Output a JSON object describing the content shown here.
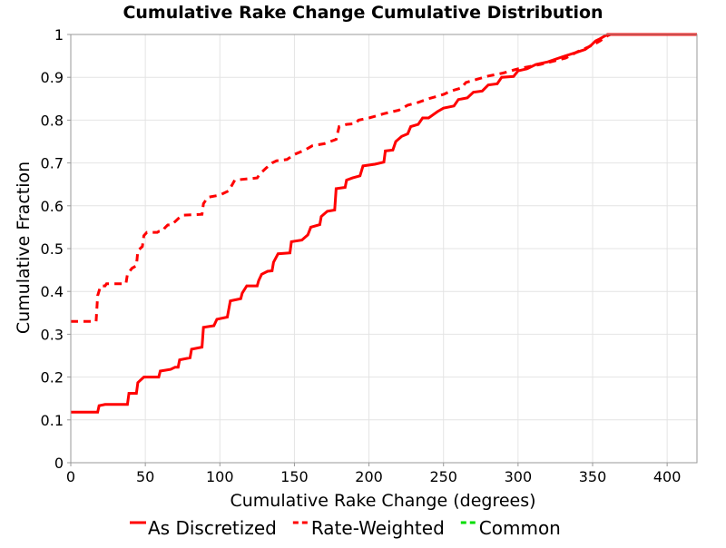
{
  "chart_data": {
    "type": "line",
    "title": "Cumulative Rake Change Cumulative Distribution",
    "xlabel": "Cumulative Rake Change (degrees)",
    "ylabel": "Cumulative Fraction",
    "xlim": [
      0,
      420
    ],
    "ylim": [
      0,
      1
    ],
    "x_ticks": [
      "0",
      "50",
      "100",
      "150",
      "200",
      "250",
      "300",
      "350",
      "400"
    ],
    "y_ticks": [
      "0",
      "0.1",
      "0.2",
      "0.3",
      "0.4",
      "0.5",
      "0.6",
      "0.7",
      "0.8",
      "0.9",
      "1"
    ],
    "grid": true,
    "legend_position": "bottom",
    "series": [
      {
        "name": "As Discretized",
        "style": "solid",
        "color": "#ff0000",
        "points": [
          [
            0,
            0.118
          ],
          [
            18,
            0.118
          ],
          [
            19,
            0.133
          ],
          [
            23,
            0.136
          ],
          [
            38,
            0.136
          ],
          [
            39,
            0.162
          ],
          [
            44,
            0.162
          ],
          [
            45,
            0.187
          ],
          [
            49,
            0.2
          ],
          [
            59,
            0.2
          ],
          [
            60,
            0.214
          ],
          [
            67,
            0.218
          ],
          [
            70,
            0.223
          ],
          [
            72,
            0.223
          ],
          [
            73,
            0.24
          ],
          [
            80,
            0.245
          ],
          [
            81,
            0.265
          ],
          [
            88,
            0.27
          ],
          [
            89,
            0.316
          ],
          [
            96,
            0.32
          ],
          [
            98,
            0.335
          ],
          [
            105,
            0.34
          ],
          [
            107,
            0.378
          ],
          [
            114,
            0.383
          ],
          [
            115,
            0.396
          ],
          [
            118,
            0.413
          ],
          [
            125,
            0.413
          ],
          [
            126,
            0.425
          ],
          [
            128,
            0.44
          ],
          [
            132,
            0.447
          ],
          [
            135,
            0.448
          ],
          [
            136,
            0.468
          ],
          [
            139,
            0.488
          ],
          [
            147,
            0.49
          ],
          [
            148,
            0.516
          ],
          [
            155,
            0.52
          ],
          [
            159,
            0.532
          ],
          [
            161,
            0.55
          ],
          [
            167,
            0.556
          ],
          [
            168,
            0.575
          ],
          [
            172,
            0.587
          ],
          [
            177,
            0.59
          ],
          [
            178,
            0.64
          ],
          [
            184,
            0.643
          ],
          [
            185,
            0.66
          ],
          [
            189,
            0.665
          ],
          [
            194,
            0.67
          ],
          [
            196,
            0.693
          ],
          [
            204,
            0.697
          ],
          [
            210,
            0.702
          ],
          [
            211,
            0.728
          ],
          [
            216,
            0.73
          ],
          [
            218,
            0.75
          ],
          [
            222,
            0.762
          ],
          [
            226,
            0.768
          ],
          [
            228,
            0.785
          ],
          [
            233,
            0.79
          ],
          [
            236,
            0.805
          ],
          [
            240,
            0.805
          ],
          [
            246,
            0.82
          ],
          [
            250,
            0.828
          ],
          [
            257,
            0.833
          ],
          [
            260,
            0.848
          ],
          [
            266,
            0.852
          ],
          [
            270,
            0.865
          ],
          [
            276,
            0.868
          ],
          [
            280,
            0.882
          ],
          [
            286,
            0.885
          ],
          [
            289,
            0.9
          ],
          [
            297,
            0.902
          ],
          [
            300,
            0.915
          ],
          [
            306,
            0.92
          ],
          [
            312,
            0.93
          ],
          [
            320,
            0.936
          ],
          [
            330,
            0.948
          ],
          [
            338,
            0.957
          ],
          [
            345,
            0.965
          ],
          [
            349,
            0.975
          ],
          [
            352,
            0.985
          ],
          [
            355,
            0.99
          ],
          [
            360,
            1.0
          ],
          [
            420,
            1.0
          ]
        ]
      },
      {
        "name": "Rate-Weighted",
        "style": "dashed",
        "color": "#ff0000",
        "points": [
          [
            0,
            0.33
          ],
          [
            17,
            0.33
          ],
          [
            18,
            0.39
          ],
          [
            20,
            0.413
          ],
          [
            23,
            0.413
          ],
          [
            24,
            0.418
          ],
          [
            30,
            0.418
          ],
          [
            37,
            0.418
          ],
          [
            38,
            0.44
          ],
          [
            41,
            0.454
          ],
          [
            44,
            0.46
          ],
          [
            45,
            0.495
          ],
          [
            48,
            0.505
          ],
          [
            49,
            0.53
          ],
          [
            51,
            0.538
          ],
          [
            58,
            0.538
          ],
          [
            59,
            0.54
          ],
          [
            62,
            0.542
          ],
          [
            63,
            0.548
          ],
          [
            65,
            0.555
          ],
          [
            68,
            0.556
          ],
          [
            69,
            0.56
          ],
          [
            72,
            0.57
          ],
          [
            75,
            0.578
          ],
          [
            88,
            0.58
          ],
          [
            89,
            0.605
          ],
          [
            92,
            0.62
          ],
          [
            100,
            0.625
          ],
          [
            106,
            0.635
          ],
          [
            110,
            0.66
          ],
          [
            125,
            0.665
          ],
          [
            127,
            0.675
          ],
          [
            131,
            0.688
          ],
          [
            135,
            0.7
          ],
          [
            138,
            0.705
          ],
          [
            145,
            0.708
          ],
          [
            150,
            0.72
          ],
          [
            157,
            0.73
          ],
          [
            162,
            0.74
          ],
          [
            170,
            0.745
          ],
          [
            178,
            0.755
          ],
          [
            180,
            0.785
          ],
          [
            185,
            0.79
          ],
          [
            191,
            0.792
          ],
          [
            193,
            0.8
          ],
          [
            200,
            0.805
          ],
          [
            205,
            0.81
          ],
          [
            210,
            0.815
          ],
          [
            216,
            0.82
          ],
          [
            220,
            0.823
          ],
          [
            226,
            0.835
          ],
          [
            232,
            0.84
          ],
          [
            240,
            0.85
          ],
          [
            250,
            0.86
          ],
          [
            255,
            0.868
          ],
          [
            262,
            0.875
          ],
          [
            265,
            0.888
          ],
          [
            272,
            0.895
          ],
          [
            280,
            0.903
          ],
          [
            290,
            0.91
          ],
          [
            300,
            0.92
          ],
          [
            315,
            0.93
          ],
          [
            332,
            0.945
          ],
          [
            340,
            0.96
          ],
          [
            350,
            0.975
          ],
          [
            355,
            0.985
          ],
          [
            360,
            0.997
          ],
          [
            362,
            1.0
          ],
          [
            420,
            1.0
          ]
        ]
      },
      {
        "name": "Common",
        "style": "dashed",
        "color": "#00dd00",
        "points": []
      }
    ]
  }
}
